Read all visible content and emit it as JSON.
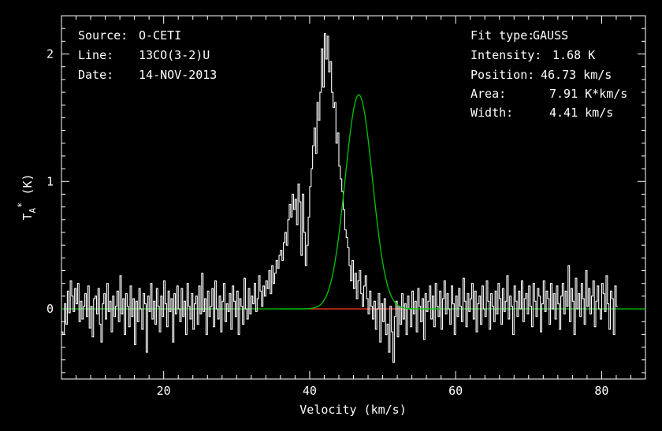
{
  "info": {
    "source_label": "Source:",
    "source_value": "O-CETI",
    "line_label": "Line:",
    "line_value": "13CO(3-2)U",
    "date_label": "Date:",
    "date_value": "14-NOV-2013",
    "fit_type_label": "Fit type:",
    "fit_type_value": "GAUSS",
    "intensity_label": "Intensity:",
    "intensity_value": "1.68 K",
    "position_label": "Position:",
    "position_value": "46.73 km/s",
    "area_label": "Area:",
    "area_value": "7.91 K*km/s",
    "width_label": "Width:",
    "width_value": "4.41 km/s"
  },
  "chart_data": {
    "type": "line",
    "xlabel": "Velocity (km/s)",
    "ylabel": "T*A (K)",
    "xlim": [
      6,
      86
    ],
    "ylim": [
      -0.55,
      2.3
    ],
    "x_ticks": [
      20,
      40,
      60,
      80
    ],
    "y_ticks": [
      0,
      1,
      2
    ],
    "x_tick_labels": [
      "20",
      "40",
      "60",
      "80"
    ],
    "y_tick_labels": [
      "0",
      "1",
      "2"
    ],
    "grid": false,
    "series": [
      {
        "kind": "observed spectrum",
        "color": "#ffffff",
        "x_start": 6.1,
        "x_step": 0.2,
        "values": [
          -0.18,
          -0.2,
          0.04,
          -0.12,
          0.14,
          -0.03,
          0.22,
          0.1,
          -0.02,
          0.16,
          0.04,
          0.2,
          -0.1,
          0.06,
          -0.08,
          0.02,
          0.12,
          -0.06,
          0.18,
          -0.15,
          0.02,
          -0.22,
          0.08,
          0.1,
          -0.04,
          0.16,
          -0.12,
          -0.26,
          0.04,
          0.12,
          -0.08,
          0.2,
          -0.02,
          0.06,
          -0.18,
          0.1,
          -0.06,
          0.02,
          0.14,
          -0.1,
          0.26,
          -0.04,
          0.08,
          -0.2,
          0.12,
          0.02,
          -0.14,
          0.18,
          -0.06,
          0.08,
          -0.28,
          0.06,
          -0.1,
          0.16,
          0.0,
          -0.16,
          0.12,
          0.04,
          -0.34,
          0.1,
          -0.02,
          0.2,
          -0.08,
          0.06,
          -0.12,
          0.16,
          0.02,
          -0.18,
          0.1,
          -0.06,
          0.22,
          0.04,
          -0.14,
          0.14,
          -0.02,
          0.08,
          -0.26,
          0.12,
          -0.04,
          0.18,
          0.0,
          -0.1,
          0.16,
          -0.06,
          0.06,
          -0.2,
          0.2,
          0.02,
          -0.08,
          0.12,
          -0.16,
          0.04,
          0.1,
          -0.12,
          0.18,
          -0.04,
          0.28,
          -0.02,
          0.08,
          -0.2,
          0.14,
          -0.06,
          0.02,
          0.16,
          -0.14,
          0.22,
          0.0,
          -0.08,
          0.1,
          -0.18,
          0.06,
          0.2,
          -0.1,
          0.04,
          -0.02,
          0.12,
          -0.16,
          0.18,
          0.06,
          -0.06,
          0.14,
          -0.2,
          0.08,
          0.02,
          -0.12,
          0.24,
          0.0,
          -0.08,
          0.16,
          -0.04,
          0.1,
          0.04,
          0.2,
          -0.02,
          0.08,
          0.26,
          0.14,
          0.02,
          0.18,
          0.1,
          0.22,
          0.16,
          0.3,
          0.12,
          0.34,
          0.2,
          0.28,
          0.38,
          0.32,
          0.42,
          0.46,
          0.38,
          0.52,
          0.6,
          0.5,
          0.7,
          0.82,
          0.72,
          0.9,
          0.78,
          0.86,
          0.66,
          0.98,
          0.84,
          0.42,
          0.9,
          0.6,
          0.34,
          0.5,
          0.72,
          0.96,
          1.1,
          1.28,
          1.42,
          1.22,
          1.62,
          1.48,
          1.7,
          2.04,
          1.74,
          2.16,
          1.96,
          2.14,
          1.86,
          1.94,
          1.7,
          1.58,
          1.62,
          1.3,
          1.38,
          1.12,
          1.02,
          0.92,
          0.78,
          0.62,
          0.56,
          0.48,
          0.34,
          0.22,
          0.38,
          0.16,
          0.28,
          0.08,
          0.22,
          0.3,
          0.12,
          0.02,
          0.18,
          0.26,
          0.08,
          -0.04,
          0.14,
          0.02,
          -0.08,
          0.06,
          -0.16,
          0.0,
          0.12,
          -0.26,
          0.04,
          -0.1,
          0.08,
          -0.2,
          -0.12,
          -0.34,
          0.02,
          -0.18,
          -0.42,
          -0.06,
          0.06,
          -0.22,
          0.02,
          -0.12,
          0.12,
          -0.08,
          0.04,
          -0.2,
          0.1,
          0.0,
          -0.14,
          0.14,
          -0.04,
          0.06,
          -0.18,
          0.16,
          0.02,
          -0.1,
          0.08,
          -0.24,
          0.12,
          -0.02,
          0.06,
          0.18,
          -0.08,
          0.1,
          -0.14,
          0.2,
          0.02,
          -0.06,
          0.14,
          -0.16,
          0.08,
          0.22,
          -0.04,
          0.12,
          0.0,
          -0.12,
          0.18,
          0.04,
          -0.2,
          0.1,
          -0.06,
          0.16,
          0.02,
          -0.1,
          0.24,
          0.06,
          -0.14,
          0.12,
          -0.02,
          0.08,
          0.2,
          -0.08,
          0.14,
          -0.18,
          0.04,
          0.1,
          -0.12,
          0.18,
          0.0,
          -0.06,
          0.22,
          0.06,
          -0.16,
          0.12,
          0.02,
          -0.1,
          0.14,
          -0.04,
          0.2,
          0.08,
          -0.12,
          0.16,
          -0.02,
          0.06,
          0.26,
          -0.08,
          0.1,
          0.02,
          -0.2,
          0.18,
          0.06,
          -0.06,
          0.14,
          0.0,
          0.22,
          -0.1,
          0.08,
          0.12,
          -0.04,
          0.18,
          0.02,
          -0.14,
          0.2,
          0.06,
          -0.06,
          0.16,
          0.1,
          -0.18,
          0.04,
          0.22,
          -0.02,
          0.14,
          0.08,
          -0.12,
          0.2,
          0.0,
          0.12,
          -0.08,
          0.18,
          0.04,
          -0.16,
          0.1,
          0.2,
          -0.04,
          0.14,
          0.02,
          0.34,
          -0.1,
          0.16,
          0.06,
          -0.2,
          0.24,
          0.0,
          0.12,
          -0.06,
          0.2,
          0.08,
          -0.12,
          0.3,
          0.02,
          0.16,
          -0.04,
          0.1,
          0.22,
          -0.14,
          0.06,
          0.18,
          0.0,
          -0.08,
          0.2,
          0.12,
          -0.02,
          0.26,
          0.04,
          -0.16,
          0.14,
          0.08,
          -0.2,
          0.18,
          0.02
        ]
      },
      {
        "kind": "gaussian fit",
        "color": "#00c800",
        "intensity": 1.68,
        "position": 46.73,
        "width": 4.41
      },
      {
        "kind": "fit window baseline",
        "color": "#ff2020",
        "x_range": [
          40.0,
          53.0
        ]
      },
      {
        "kind": "baseline",
        "color": "#00c800",
        "x_range": [
          6,
          86
        ]
      }
    ]
  }
}
